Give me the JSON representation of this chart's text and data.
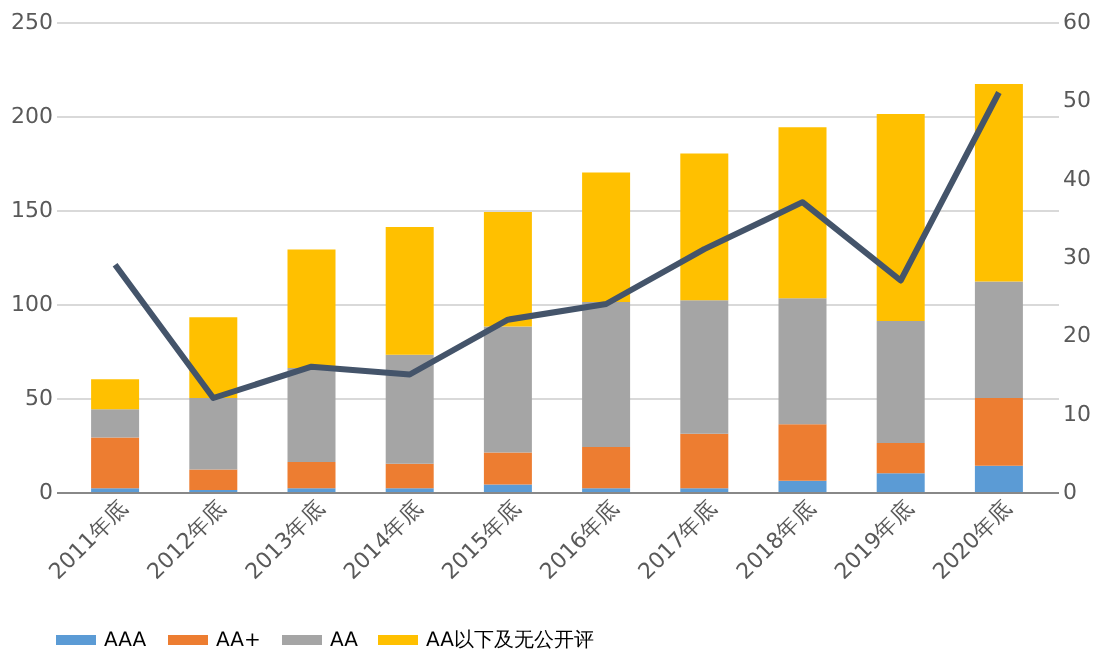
{
  "chart_data": {
    "type": "bar",
    "stacked": true,
    "categories": [
      "2011年底",
      "2012年底",
      "2013年底",
      "2014年底",
      "2015年底",
      "2016年底",
      "2017年底",
      "2018年底",
      "2019年底",
      "2020年底"
    ],
    "series": [
      {
        "name": "AAA",
        "color": "#5b9bd5",
        "values": [
          2,
          1,
          2,
          2,
          4,
          2,
          2,
          6,
          10,
          14
        ]
      },
      {
        "name": "AA+",
        "color": "#ed7d31",
        "values": [
          27,
          11,
          14,
          13,
          17,
          22,
          29,
          30,
          16,
          36
        ]
      },
      {
        "name": "AA",
        "color": "#a5a5a5",
        "values": [
          15,
          38,
          50,
          58,
          67,
          77,
          71,
          67,
          65,
          62
        ]
      },
      {
        "name": "AA以下及无公开评",
        "color": "#ffc000",
        "values": [
          16,
          43,
          63,
          68,
          61,
          69,
          78,
          91,
          110,
          105
        ]
      },
      {
        "type": "line",
        "axis": "y2",
        "color": "#44546a",
        "values": [
          29,
          12,
          16,
          15,
          22,
          24,
          31,
          37,
          27,
          51
        ]
      }
    ],
    "ylim": [
      0,
      250
    ],
    "yticks": [
      0,
      50,
      100,
      150,
      200,
      250
    ],
    "y2lim": [
      0,
      60
    ],
    "y2ticks": [
      0,
      10,
      20,
      30,
      40,
      50,
      60
    ],
    "grid": "y",
    "legend": "bottom"
  }
}
